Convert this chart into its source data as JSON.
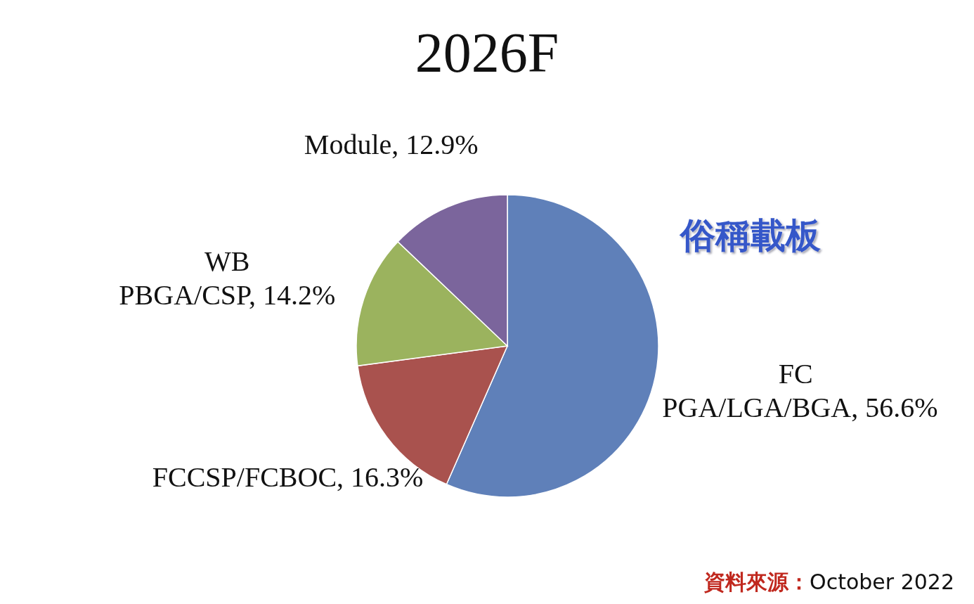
{
  "chart_data": {
    "type": "pie",
    "title": "2026F",
    "categories": [
      "FC PGA/LGA/BGA",
      "FCCSP/FCBOC",
      "WB PBGA/CSP",
      "Module"
    ],
    "values": [
      56.6,
      16.3,
      14.2,
      12.9
    ],
    "value_labels": [
      "56.6%",
      "16.3%",
      "14.2%",
      "12.9%"
    ],
    "colors": [
      "#5f80b9",
      "#a9524e",
      "#9bb35e",
      "#7b659c"
    ],
    "annotations": [
      "俗稱載板",
      "資料來源：October 2022"
    ]
  }
}
